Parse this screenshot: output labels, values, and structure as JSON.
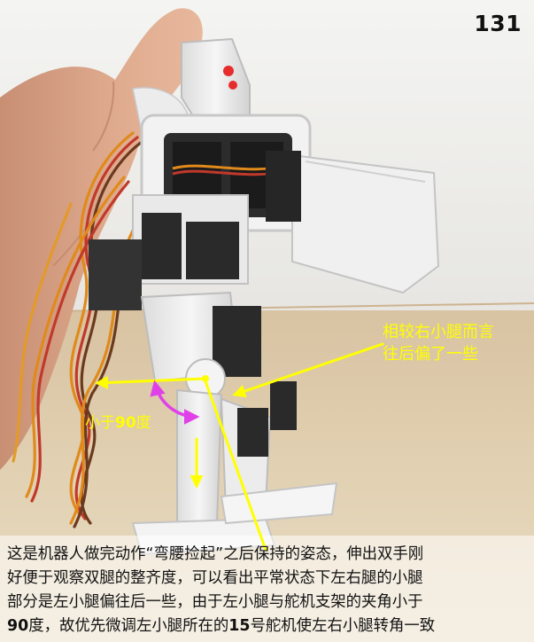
{
  "page_number": "131",
  "annotations": {
    "right_leg_note_line1": "相较右小腿而言",
    "right_leg_note_line2": "往后偏了一些",
    "angle_prefix": "小于",
    "angle_value": "90",
    "angle_suffix": "度"
  },
  "caption": {
    "line1": "这是机器人做完动作“弯腰捡起”之后保持的姿态，伸出双手刚",
    "line2": "好便于观察双腿的整齐度，可以看出平常状态下左右腿的小腿",
    "line3": "部分是左小腿偏往后一些，由于左小腿与舵机支架的夹角小于",
    "line4a_num": "90",
    "line4a": "度，故优先微调左小腿所在的",
    "line4b_num": "15",
    "line4b": "号舵机使左右小腿转角一致"
  },
  "colors": {
    "annotation_yellow": "#ffff00",
    "angle_arc_magenta": "#e040e8",
    "caption_text": "#111111"
  }
}
